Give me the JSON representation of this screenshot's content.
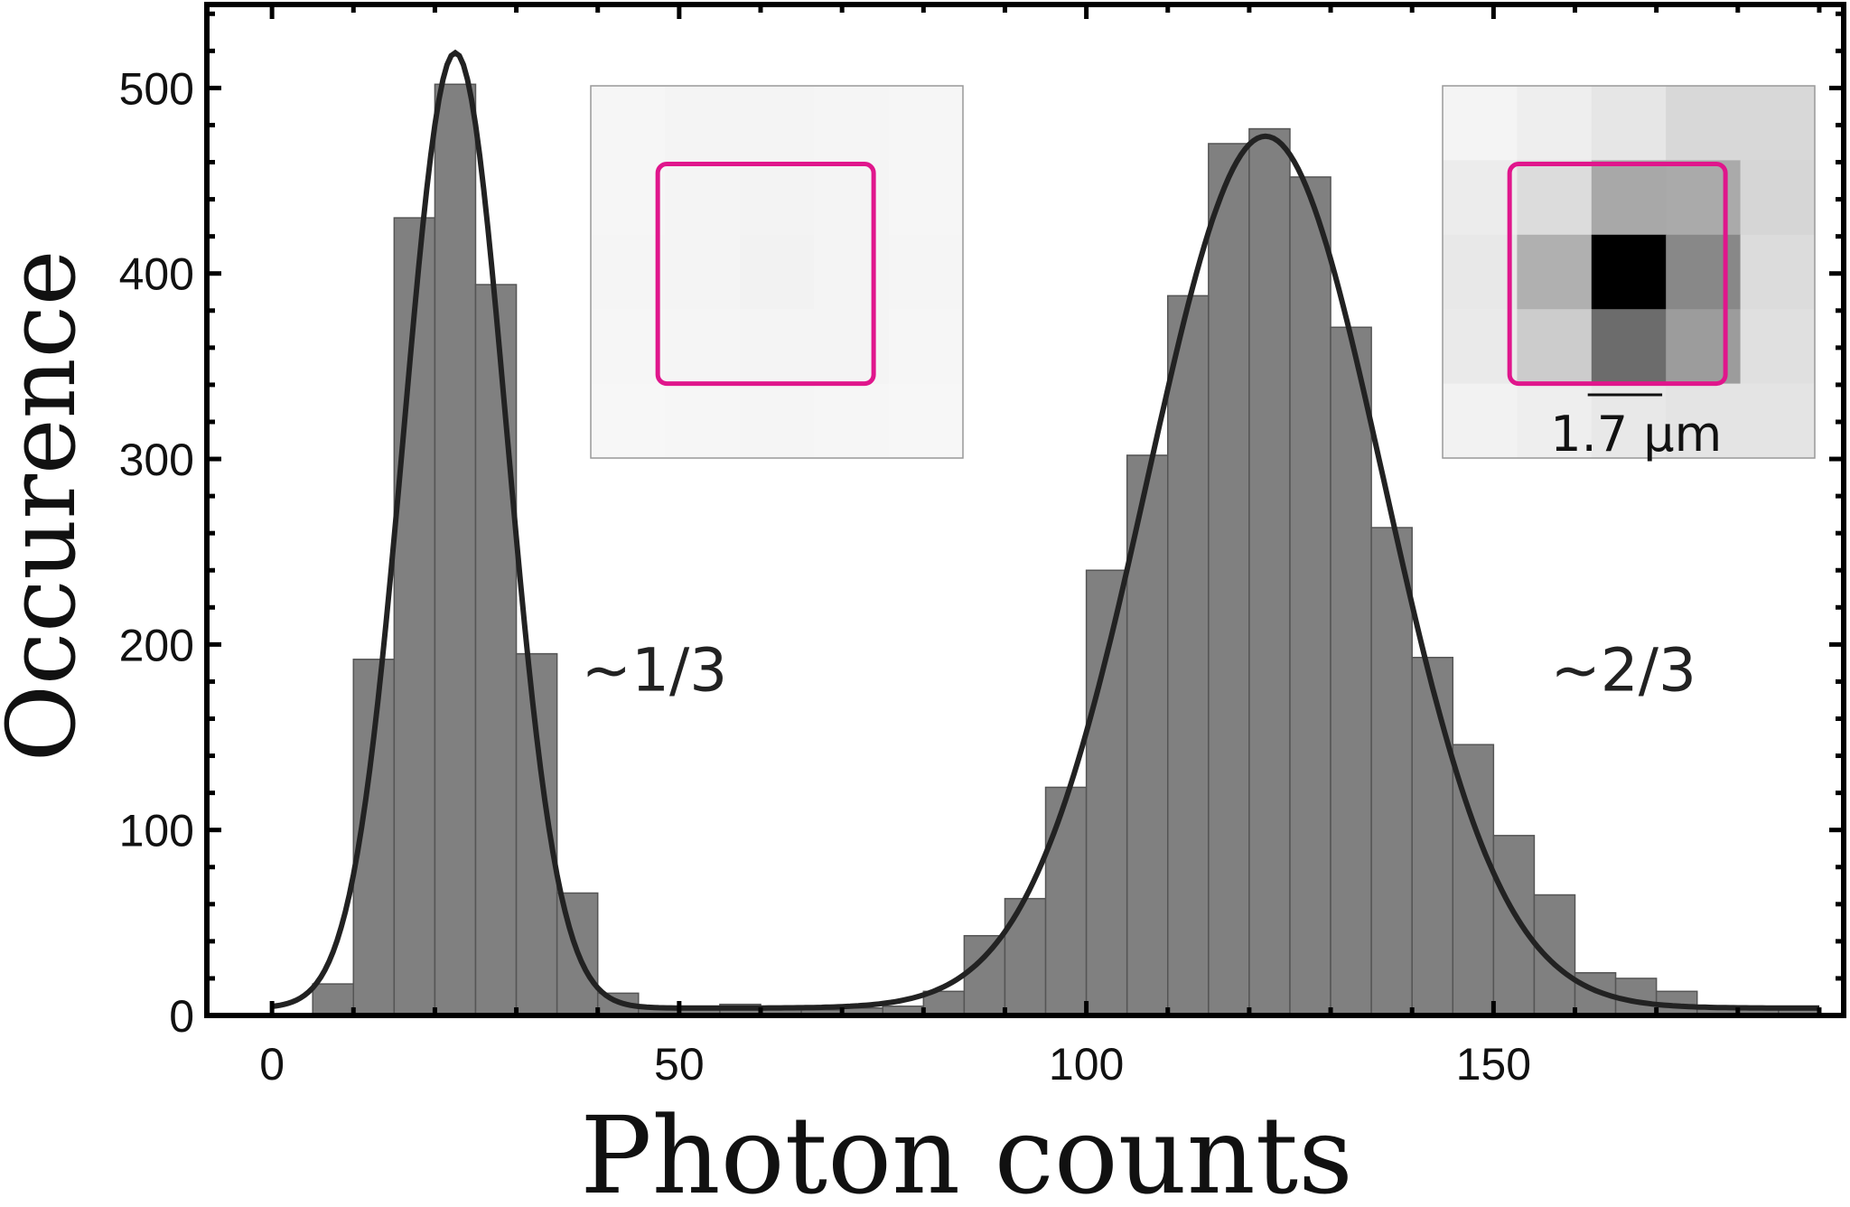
{
  "chart_data": {
    "type": "bar",
    "title": "",
    "xlabel": "Photon counts",
    "ylabel": "Occurence",
    "xlim": [
      -8,
      193
    ],
    "ylim": [
      0,
      545
    ],
    "grid": false,
    "x_ticks": [
      0,
      50,
      100,
      150
    ],
    "y_ticks": [
      0,
      100,
      200,
      300,
      400,
      500
    ],
    "bin_width": 5,
    "bin_starts": [
      5,
      10,
      15,
      20,
      25,
      30,
      35,
      40,
      45,
      50,
      55,
      60,
      65,
      70,
      75,
      80,
      85,
      90,
      95,
      100,
      105,
      110,
      115,
      120,
      125,
      130,
      135,
      140,
      145,
      150,
      155,
      160,
      165,
      170,
      175,
      180,
      185
    ],
    "values": [
      17,
      192,
      430,
      502,
      394,
      195,
      66,
      12,
      5,
      3,
      6,
      3,
      3,
      4,
      5,
      13,
      43,
      63,
      123,
      240,
      302,
      388,
      470,
      478,
      452,
      371,
      263,
      193,
      146,
      97,
      65,
      23,
      20,
      13,
      5,
      4,
      3
    ],
    "bar_color": "#808080",
    "fit": {
      "type": "line",
      "color": "#222222",
      "components": [
        {
          "center": 22.5,
          "amplitude": 515,
          "sigma": 6.3
        },
        {
          "center": 122,
          "amplitude": 470,
          "sigma": 14.5
        }
      ],
      "baseline": 4
    },
    "annotations": [
      {
        "text": "~1/3",
        "x": 38,
        "y": 175
      },
      {
        "text": "~2/3",
        "x": 157,
        "y": 175
      }
    ],
    "insets": [
      {
        "name": "dark",
        "pixels": [
          [
            "#f6f6f6",
            "#f4f4f4",
            "#f4f4f4",
            "#f5f5f5",
            "#f6f6f6"
          ],
          [
            "#f6f6f6",
            "#f4f4f4",
            "#f3f3f3",
            "#f4f4f4",
            "#f6f6f6"
          ],
          [
            "#f5f5f5",
            "#f4f4f4",
            "#f2f2f2",
            "#f4f4f4",
            "#f5f5f5"
          ],
          [
            "#f6f6f6",
            "#f5f5f5",
            "#f4f4f4",
            "#f4f4f4",
            "#f6f6f6"
          ],
          [
            "#f7f7f7",
            "#f6f6f6",
            "#f5f5f5",
            "#f6f6f6",
            "#f7f7f7"
          ]
        ],
        "roi_color": "#e0168c"
      },
      {
        "name": "bright",
        "pixels": [
          [
            "#f4f4f4",
            "#eeeeee",
            "#e6e6e6",
            "#d8d8d8",
            "#d8d8d8"
          ],
          [
            "#ececec",
            "#dcdcdc",
            "#a8a8a8",
            "#aaaaaa",
            "#d6d6d6"
          ],
          [
            "#e8e8e8",
            "#b0b0b0",
            "#000000",
            "#888888",
            "#dcdcdc"
          ],
          [
            "#eaeaea",
            "#cccccc",
            "#6c6c6c",
            "#9c9c9c",
            "#e0e0e0"
          ],
          [
            "#f2f2f2",
            "#eeeeee",
            "#e8e8e8",
            "#e4e4e4",
            "#e4e4e4"
          ]
        ],
        "roi_color": "#e0168c",
        "scale_bar_label": "1.7 µm"
      }
    ]
  }
}
